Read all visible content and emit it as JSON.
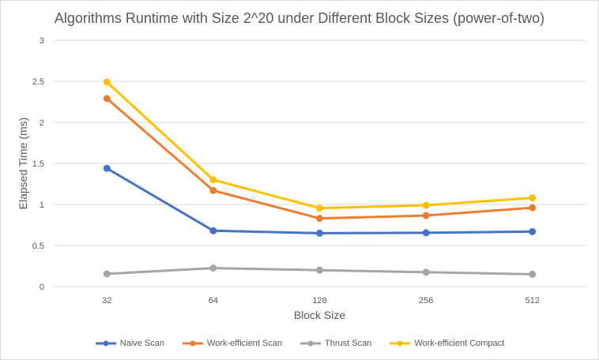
{
  "chart_data": {
    "type": "line",
    "title": "Algorithms Runtime with Size 2^20 under Different Block Sizes (power-of-two)",
    "xlabel": "Block Size",
    "ylabel": "Elapsed Time (ms)",
    "categories": [
      "32",
      "64",
      "128",
      "256",
      "512"
    ],
    "ylim": [
      0,
      3
    ],
    "yticks": [
      "0",
      "0.5",
      "1",
      "1.5",
      "2",
      "2.5",
      "3"
    ],
    "grid": true,
    "legend_position": "bottom",
    "series": [
      {
        "name": "Naive Scan",
        "color": "#4472C4",
        "values": [
          1.44,
          0.68,
          0.65,
          0.655,
          0.67
        ]
      },
      {
        "name": "Work-efficient Scan",
        "color": "#ED7D31",
        "values": [
          2.29,
          1.17,
          0.83,
          0.865,
          0.96
        ]
      },
      {
        "name": "Thrust Scan",
        "color": "#A5A5A5",
        "values": [
          0.155,
          0.225,
          0.2,
          0.175,
          0.15
        ]
      },
      {
        "name": "Work-efficient Compact",
        "color": "#FFC000",
        "values": [
          2.49,
          1.3,
          0.955,
          0.99,
          1.08
        ]
      }
    ]
  }
}
